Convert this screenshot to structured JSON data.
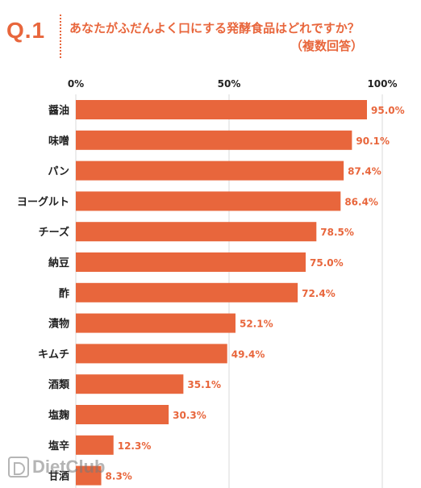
{
  "header": {
    "question_number": "Q.1",
    "title_line1": "あなたがふだんよく口にする発酵食品はどれですか？",
    "title_line2": "（複数回答）"
  },
  "colors": {
    "bar": "#e8663c",
    "accent": "#e8663c",
    "gridline": "#d8d8d8",
    "label": "#222222"
  },
  "watermark": "DietClub",
  "chart_data": {
    "type": "bar",
    "orientation": "horizontal",
    "title": "あなたがふだんよく口にする発酵食品はどれですか？（複数回答）",
    "xlabel": "",
    "ylabel": "",
    "xlim": [
      0,
      100
    ],
    "x_ticks": [
      "0%",
      "50%",
      "100%"
    ],
    "categories": [
      "醤油",
      "味噌",
      "パン",
      "ヨーグルト",
      "チーズ",
      "納豆",
      "酢",
      "漬物",
      "キムチ",
      "酒類",
      "塩麹",
      "塩辛",
      "甘酒"
    ],
    "values": [
      95.0,
      90.1,
      87.4,
      86.4,
      78.5,
      75.0,
      72.4,
      52.1,
      49.4,
      35.1,
      30.3,
      12.3,
      8.3
    ],
    "value_labels": [
      "95.0%",
      "90.1%",
      "87.4%",
      "86.4%",
      "78.5%",
      "75.0%",
      "72.4%",
      "52.1%",
      "49.4%",
      "35.1%",
      "30.3%",
      "12.3%",
      "8.3%"
    ],
    "grid": true,
    "legend": "none"
  }
}
